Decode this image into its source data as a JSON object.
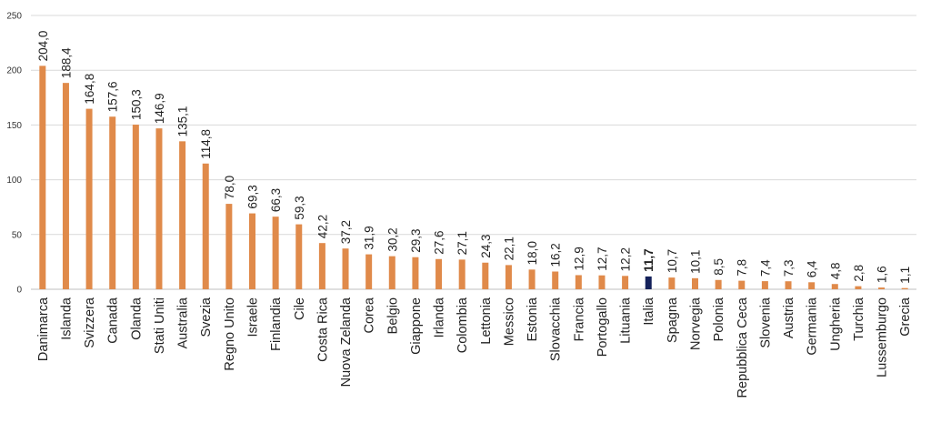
{
  "chart_data": {
    "type": "bar",
    "categories": [
      "Danimarca",
      "Islanda",
      "Svizzera",
      "Canada",
      "Olanda",
      "Stati Uniti",
      "Australia",
      "Svezia",
      "Regno Unito",
      "Israele",
      "Finlandia",
      "Cile",
      "Costa Rica",
      "Nuova Zelanda",
      "Corea",
      "Belgio",
      "Giappone",
      "Irlanda",
      "Colombia",
      "Lettonia",
      "Messico",
      "Estonia",
      "Slovacchia",
      "Francia",
      "Portogallo",
      "Lituania",
      "Italia",
      "Spagna",
      "Norvegia",
      "Polonia",
      "Repubblica Ceca",
      "Slovenia",
      "Austria",
      "Germania",
      "Ungheria",
      "Turchia",
      "Lussemburgo",
      "Grecia"
    ],
    "values": [
      204.0,
      188.4,
      164.8,
      157.6,
      150.3,
      146.9,
      135.1,
      114.8,
      78.0,
      69.3,
      66.3,
      59.3,
      42.2,
      37.2,
      31.9,
      30.2,
      29.3,
      27.6,
      27.1,
      24.3,
      22.1,
      18.0,
      16.2,
      12.9,
      12.7,
      12.2,
      11.7,
      10.7,
      10.1,
      8.5,
      7.8,
      7.4,
      7.3,
      6.4,
      4.8,
      2.8,
      1.6,
      1.1
    ],
    "value_labels": [
      "204,0",
      "188,4",
      "164,8",
      "157,6",
      "150,3",
      "146,9",
      "135,1",
      "114,8",
      "78,0",
      "69,3",
      "66,3",
      "59,3",
      "42,2",
      "37,2",
      "31,9",
      "30,2",
      "29,3",
      "27,6",
      "27,1",
      "24,3",
      "22,1",
      "18,0",
      "16,2",
      "12,9",
      "12,7",
      "12,2",
      "11,7",
      "10,7",
      "10,1",
      "8,5",
      "7,8",
      "7,4",
      "7,3",
      "6,4",
      "4,8",
      "2,8",
      "1,6",
      "1,1"
    ],
    "highlight": "Italia",
    "ylim": [
      0,
      250
    ],
    "yticks": [
      0,
      50,
      100,
      150,
      200,
      250
    ],
    "grid": true,
    "title": "",
    "xlabel": "",
    "ylabel": ""
  },
  "colors": {
    "bar": "#E08A4A",
    "highlight": "#14215A"
  }
}
